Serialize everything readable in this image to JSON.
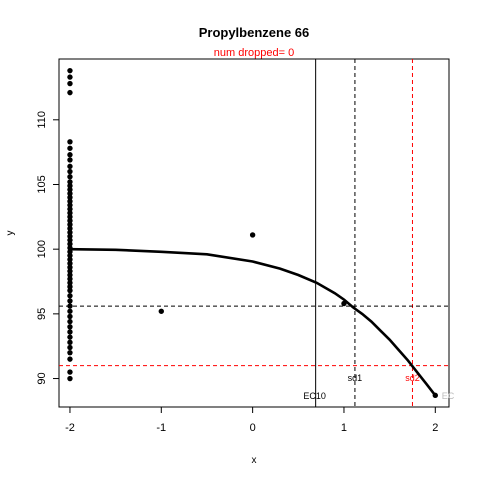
{
  "chart_data": {
    "type": "scatter",
    "title": "Propylbenzene 66",
    "subtitle": "num dropped= 0",
    "xlabel": "x",
    "ylabel": "y",
    "xlim": [
      -2.12,
      2.15
    ],
    "ylim": [
      87.8,
      114.7
    ],
    "x_ticks": [
      -2,
      -1,
      0,
      1,
      2
    ],
    "y_ticks": [
      90,
      95,
      100,
      105,
      110
    ],
    "points": [
      [
        -2,
        113.8
      ],
      [
        -2,
        113.3
      ],
      [
        -2,
        112.8
      ],
      [
        -2,
        112.1
      ],
      [
        -2,
        108.3
      ],
      [
        -2,
        107.8
      ],
      [
        -2,
        107.3
      ],
      [
        -2,
        106.9
      ],
      [
        -2,
        106.4
      ],
      [
        -2,
        106.0
      ],
      [
        -2,
        105.6
      ],
      [
        -2,
        105.2
      ],
      [
        -2,
        104.9
      ],
      [
        -2,
        104.6
      ],
      [
        -2,
        104.3
      ],
      [
        -2,
        104.0
      ],
      [
        -2,
        103.7
      ],
      [
        -2,
        103.4
      ],
      [
        -2,
        103.1
      ],
      [
        -2,
        102.8
      ],
      [
        -2,
        102.5
      ],
      [
        -2,
        102.2
      ],
      [
        -2,
        101.9
      ],
      [
        -2,
        101.6
      ],
      [
        -2,
        101.3
      ],
      [
        -2,
        101.0
      ],
      [
        -2,
        100.7
      ],
      [
        -2,
        100.4
      ],
      [
        -2,
        100.1
      ],
      [
        -2,
        99.8
      ],
      [
        -2,
        99.5
      ],
      [
        -2,
        99.2
      ],
      [
        -2,
        98.9
      ],
      [
        -2,
        98.6
      ],
      [
        -2,
        98.3
      ],
      [
        -2,
        98.0
      ],
      [
        -2,
        97.7
      ],
      [
        -2,
        97.4
      ],
      [
        -2,
        97.1
      ],
      [
        -2,
        96.8
      ],
      [
        -2,
        96.4
      ],
      [
        -2,
        96.0
      ],
      [
        -2,
        95.6
      ],
      [
        -2,
        95.2
      ],
      [
        -2,
        94.8
      ],
      [
        -2,
        94.4
      ],
      [
        -2,
        94.0
      ],
      [
        -2,
        93.6
      ],
      [
        -2,
        93.2
      ],
      [
        -2,
        92.8
      ],
      [
        -2,
        92.4
      ],
      [
        -2,
        92.0
      ],
      [
        -2,
        91.5
      ],
      [
        -2,
        90.5
      ],
      [
        -2,
        90.0
      ],
      [
        -1,
        95.2
      ],
      [
        0,
        101.1
      ],
      [
        1,
        95.8
      ],
      [
        2,
        88.7
      ]
    ],
    "fitted_curve": [
      [
        -2,
        100.0
      ],
      [
        -1.5,
        99.95
      ],
      [
        -1,
        99.8
      ],
      [
        -0.5,
        99.6
      ],
      [
        0,
        99.05
      ],
      [
        0.3,
        98.5
      ],
      [
        0.5,
        98.0
      ],
      [
        0.7,
        97.4
      ],
      [
        0.9,
        96.6
      ],
      [
        1.0,
        96.1
      ],
      [
        1.1,
        95.5
      ],
      [
        1.2,
        95.0
      ],
      [
        1.3,
        94.4
      ],
      [
        1.4,
        93.7
      ],
      [
        1.5,
        93.0
      ],
      [
        1.6,
        92.2
      ],
      [
        1.7,
        91.4
      ],
      [
        1.8,
        90.5
      ],
      [
        1.9,
        89.6
      ],
      [
        2.0,
        88.7
      ]
    ],
    "reference_lines": [
      {
        "orientation": "vertical",
        "x": 0.69,
        "color": "#000000",
        "style": "solid",
        "label": "EC10"
      },
      {
        "orientation": "vertical",
        "x": 1.12,
        "color": "#000000",
        "style": "dashed",
        "label": "sd1"
      },
      {
        "orientation": "vertical",
        "x": 1.75,
        "color": "#ff0000",
        "style": "dashed",
        "label": "sd2"
      },
      {
        "orientation": "horizontal",
        "y": 95.6,
        "color": "#000000",
        "style": "dashed"
      },
      {
        "orientation": "horizontal",
        "y": 91.0,
        "color": "#ff0000",
        "style": "dashed"
      }
    ],
    "edge_labels": [
      {
        "text": "EC",
        "color": "#bbbbbb"
      }
    ],
    "grid": false,
    "legend": "none"
  }
}
